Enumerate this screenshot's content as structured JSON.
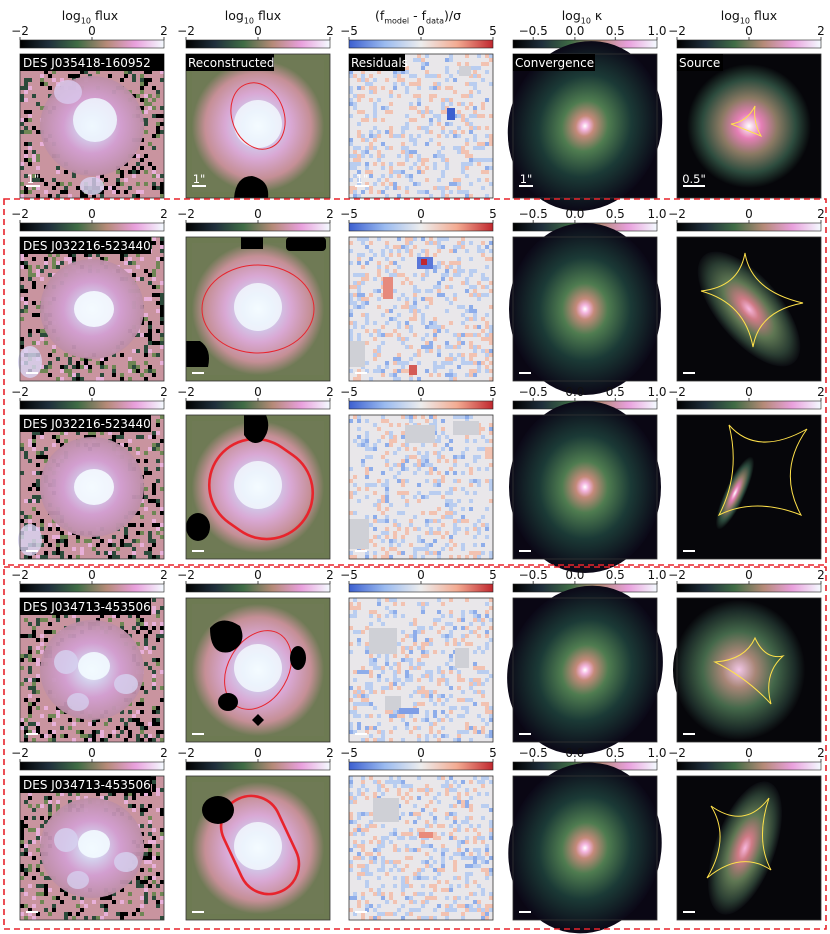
{
  "column_headers": [
    {
      "base": "log",
      "sub": "10",
      "rest": " flux"
    },
    {
      "base": "log",
      "sub": "10",
      "rest": " flux"
    },
    {
      "base": "(f",
      "sub": "model",
      "rest": " - f",
      "sub2": "data",
      "rest2": ")/σ"
    },
    {
      "base": "log",
      "sub": "10",
      "rest": " κ"
    },
    {
      "base": "log",
      "sub": "10",
      "rest": " flux"
    }
  ],
  "colorbar_ticks": {
    "flux_pm2": [
      "−2",
      "0",
      "2"
    ],
    "resid": [
      "−5",
      "0",
      "5"
    ],
    "kappa": [
      "−0.5",
      "0.0",
      "0.5",
      "1.0"
    ]
  },
  "rows": [
    {
      "object_label": "DES J035418-160952",
      "panel_labels": [
        "Reconstructed",
        "Residuals",
        "Convergence",
        "Source"
      ],
      "scalebar_labels": [
        "1\"",
        "1\"",
        "1\"",
        "1\"",
        "0.5\""
      ]
    },
    {
      "object_label": "DES J032216-523440"
    },
    {
      "object_label": "DES J032216-523440"
    },
    {
      "object_label": "DES J034713-453506"
    },
    {
      "object_label": "DES J034713-453506"
    }
  ],
  "colors": {
    "box_border": "#e8242c",
    "critical_curve": "#e8242c",
    "caustic": "#ffe14a",
    "mask": "#000000",
    "kappa_bg": "#0a0714",
    "source_bg": "#06060a"
  }
}
